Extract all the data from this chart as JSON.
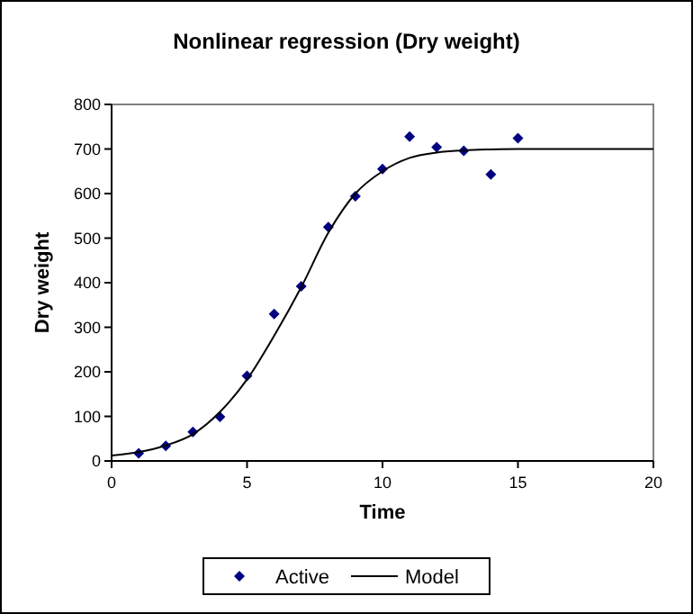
{
  "chart_data": {
    "type": "scatter",
    "title": "Nonlinear regression (Dry weight)",
    "xlabel": "Time",
    "ylabel": "Dry weight",
    "xlim": [
      0,
      20
    ],
    "xticks": [
      0,
      5,
      10,
      15,
      20
    ],
    "ylim": [
      0,
      800
    ],
    "yticks": [
      0,
      100,
      200,
      300,
      400,
      500,
      600,
      700,
      800
    ],
    "grid": false,
    "legend": "bottom",
    "series": [
      {
        "name": "Active",
        "marker": "diamond",
        "color": "#000080",
        "x": [
          1,
          2,
          3,
          4,
          5,
          6,
          7,
          8,
          9,
          10,
          11,
          12,
          13,
          14,
          15
        ],
        "values": [
          17,
          34,
          65,
          99,
          191,
          330,
          392,
          525,
          594,
          655,
          728,
          704,
          696,
          643,
          724
        ]
      },
      {
        "name": "Model",
        "type": "line",
        "marker": "none",
        "color": "#000000",
        "x": [
          0,
          1,
          2,
          3,
          4,
          5,
          6,
          7,
          8,
          9,
          10,
          11,
          12,
          13,
          14,
          15,
          16,
          17,
          18,
          19,
          20
        ],
        "values": [
          12,
          20,
          35,
          60,
          110,
          183,
          281,
          390,
          512,
          600,
          650,
          680,
          692,
          697,
          699,
          700,
          700,
          700,
          700,
          700,
          700
        ]
      }
    ]
  }
}
